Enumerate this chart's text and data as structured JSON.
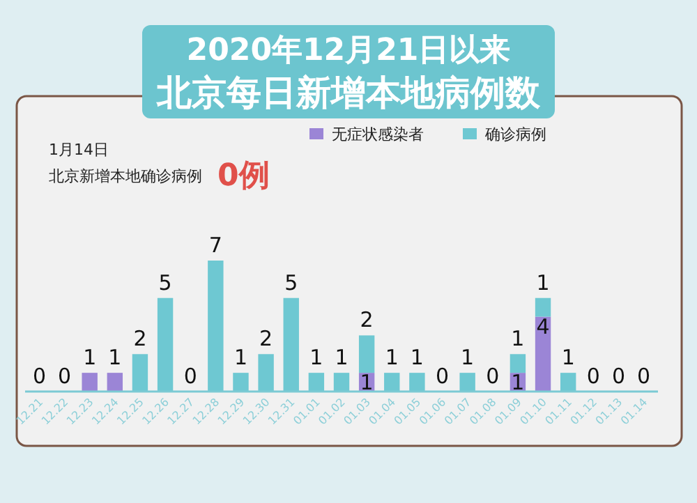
{
  "chart_data": {
    "type": "bar",
    "stacked": true,
    "subtitle": "2020年12月21日以来",
    "title": "北京每日新增本地病例数",
    "annotations": [
      "1月14日",
      "北京新增本地确诊病例",
      "0例"
    ],
    "legend": "top",
    "categories": [
      "12.21",
      "12.22",
      "12.23",
      "12.24",
      "12.25",
      "12.26",
      "12.27",
      "12.28",
      "12.29",
      "12.30",
      "12.31",
      "01.01",
      "01.02",
      "01.03",
      "01.04",
      "01.05",
      "01.06",
      "01.07",
      "01.08",
      "01.09",
      "01.10",
      "01.11",
      "01.12",
      "01.13",
      "01.14"
    ],
    "series": [
      {
        "name": "无症状感染者",
        "color": "#9b85d6",
        "values": [
          0,
          0,
          1,
          1,
          0,
          0,
          0,
          0,
          0,
          0,
          0,
          0,
          0,
          1,
          0,
          0,
          0,
          0,
          0,
          1,
          4,
          0,
          0,
          0,
          0
        ],
        "value_labels": [
          null,
          null,
          "1",
          "1",
          null,
          null,
          null,
          null,
          null,
          null,
          null,
          null,
          null,
          "1",
          null,
          null,
          null,
          null,
          null,
          "1",
          "4",
          null,
          null,
          null,
          null
        ]
      },
      {
        "name": "确诊病例",
        "color": "#6ec8d2",
        "values": [
          0,
          0,
          0,
          0,
          2,
          5,
          0,
          7,
          1,
          2,
          5,
          1,
          1,
          2,
          1,
          1,
          0,
          1,
          0,
          1,
          1,
          1,
          0,
          0,
          0
        ],
        "value_labels": [
          "0",
          "0",
          null,
          null,
          "2",
          "5",
          "0",
          "7",
          "1",
          "2",
          "5",
          "1",
          "1",
          "2",
          "1",
          "1",
          "0",
          "1",
          "0",
          "1",
          "1",
          "1",
          "0",
          "0",
          "0"
        ]
      }
    ]
  }
}
